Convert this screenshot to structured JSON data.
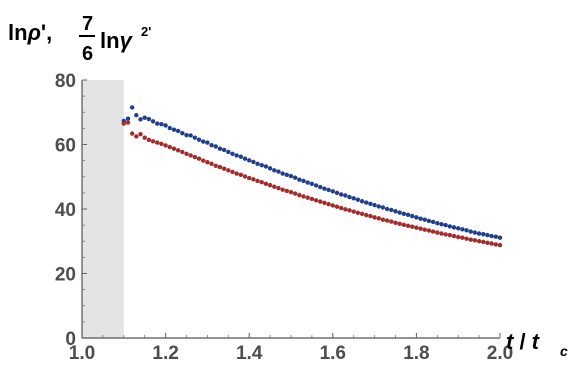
{
  "chart_data": {
    "type": "scatter",
    "title": "",
    "xlabel": {
      "base": "t",
      "slash": " / ",
      "sub_base": "t",
      "sub": "c"
    },
    "ylabel": {
      "part1": "ln",
      "rho": "ρ",
      "prime1": "',",
      "frac_num": "7",
      "frac_den": "6",
      "part2": "ln",
      "gamma": "γ",
      "sup": "2'"
    },
    "xlim": [
      1.0,
      2.0
    ],
    "ylim": [
      0,
      80
    ],
    "xticks": [
      1.0,
      1.2,
      1.4,
      1.6,
      1.8,
      2.0
    ],
    "xtick_labels": [
      "1.0",
      "1.2",
      "1.4",
      "1.6",
      "1.8",
      "2.0"
    ],
    "yticks": [
      0,
      20,
      40,
      60,
      80
    ],
    "ytick_labels": [
      "0",
      "20",
      "40",
      "60",
      "80"
    ],
    "shaded_region": {
      "x_from": 1.0,
      "x_to": 1.1,
      "color": "#e3e3e3"
    },
    "grid": false,
    "series": [
      {
        "color": "#1f3f8c",
        "x": [
          1.1,
          1.11,
          1.12,
          1.13,
          1.14,
          1.15,
          1.16,
          1.17,
          1.18,
          1.19,
          1.2,
          1.21,
          1.22,
          1.23,
          1.24,
          1.25,
          1.26,
          1.27,
          1.28,
          1.29,
          1.3,
          1.31,
          1.32,
          1.33,
          1.34,
          1.35,
          1.36,
          1.37,
          1.38,
          1.39,
          1.4,
          1.41,
          1.42,
          1.43,
          1.44,
          1.45,
          1.46,
          1.47,
          1.48,
          1.49,
          1.5,
          1.51,
          1.52,
          1.53,
          1.54,
          1.55,
          1.56,
          1.57,
          1.58,
          1.59,
          1.6,
          1.61,
          1.62,
          1.63,
          1.64,
          1.65,
          1.66,
          1.67,
          1.68,
          1.69,
          1.7,
          1.71,
          1.72,
          1.73,
          1.74,
          1.75,
          1.76,
          1.77,
          1.78,
          1.79,
          1.8,
          1.81,
          1.82,
          1.83,
          1.84,
          1.85,
          1.86,
          1.87,
          1.88,
          1.89,
          1.9,
          1.91,
          1.92,
          1.93,
          1.94,
          1.95,
          1.96,
          1.97,
          1.98,
          1.99,
          2.0
        ],
        "y": [
          67.3,
          68.0,
          71.5,
          69.1,
          67.8,
          68.3,
          67.9,
          67.2,
          66.5,
          66.3,
          65.9,
          65.1,
          64.6,
          64.2,
          63.5,
          62.9,
          62.8,
          62.1,
          61.5,
          60.9,
          60.6,
          59.8,
          59.4,
          58.7,
          58.3,
          57.7,
          57.1,
          56.6,
          56.2,
          55.6,
          55.1,
          54.6,
          54.0,
          53.6,
          53.2,
          52.6,
          52.0,
          51.6,
          51.0,
          50.6,
          50.2,
          49.7,
          49.1,
          48.7,
          48.2,
          47.8,
          47.3,
          46.8,
          46.3,
          45.9,
          45.5,
          45.0,
          44.5,
          44.2,
          43.7,
          43.3,
          42.9,
          42.4,
          42.0,
          41.6,
          41.2,
          40.8,
          40.5,
          40.0,
          39.7,
          39.3,
          38.9,
          38.5,
          38.2,
          37.8,
          37.4,
          37.0,
          36.7,
          36.3,
          36.0,
          35.6,
          35.3,
          35.0,
          34.6,
          34.3,
          34.0,
          33.7,
          33.4,
          33.0,
          32.7,
          32.4,
          32.2,
          31.9,
          31.6,
          31.4,
          31.1
        ]
      },
      {
        "color": "#a52a2a",
        "x": [
          1.1,
          1.11,
          1.12,
          1.13,
          1.14,
          1.15,
          1.16,
          1.17,
          1.18,
          1.19,
          1.2,
          1.21,
          1.22,
          1.23,
          1.24,
          1.25,
          1.26,
          1.27,
          1.28,
          1.29,
          1.3,
          1.31,
          1.32,
          1.33,
          1.34,
          1.35,
          1.36,
          1.37,
          1.38,
          1.39,
          1.4,
          1.41,
          1.42,
          1.43,
          1.44,
          1.45,
          1.46,
          1.47,
          1.48,
          1.49,
          1.5,
          1.51,
          1.52,
          1.53,
          1.54,
          1.55,
          1.56,
          1.57,
          1.58,
          1.59,
          1.6,
          1.61,
          1.62,
          1.63,
          1.64,
          1.65,
          1.66,
          1.67,
          1.68,
          1.69,
          1.7,
          1.71,
          1.72,
          1.73,
          1.74,
          1.75,
          1.76,
          1.77,
          1.78,
          1.79,
          1.8,
          1.81,
          1.82,
          1.83,
          1.84,
          1.85,
          1.86,
          1.87,
          1.88,
          1.89,
          1.9,
          1.91,
          1.92,
          1.93,
          1.94,
          1.95,
          1.96,
          1.97,
          1.98,
          1.99,
          2.0
        ],
        "y": [
          66.5,
          66.8,
          63.4,
          62.5,
          63.2,
          62.1,
          61.4,
          61.0,
          60.6,
          60.2,
          59.7,
          59.2,
          58.7,
          58.2,
          57.7,
          57.1,
          56.6,
          56.1,
          55.6,
          55.0,
          54.5,
          54.0,
          53.4,
          53.0,
          52.5,
          52.0,
          51.5,
          51.0,
          50.6,
          50.1,
          49.6,
          49.2,
          48.7,
          48.3,
          47.8,
          47.4,
          46.9,
          46.5,
          46.0,
          45.6,
          45.2,
          44.8,
          44.3,
          43.9,
          43.5,
          43.1,
          42.7,
          42.3,
          41.9,
          41.5,
          41.1,
          40.7,
          40.3,
          39.9,
          39.6,
          39.2,
          38.8,
          38.5,
          38.1,
          37.8,
          37.4,
          37.1,
          36.7,
          36.4,
          36.1,
          35.7,
          35.4,
          35.1,
          34.8,
          34.5,
          34.2,
          33.9,
          33.6,
          33.3,
          33.0,
          32.7,
          32.4,
          32.1,
          31.9,
          31.6,
          31.3,
          31.1,
          30.8,
          30.5,
          30.3,
          30.0,
          29.8,
          29.5,
          29.3,
          29.0,
          28.8
        ]
      }
    ]
  }
}
